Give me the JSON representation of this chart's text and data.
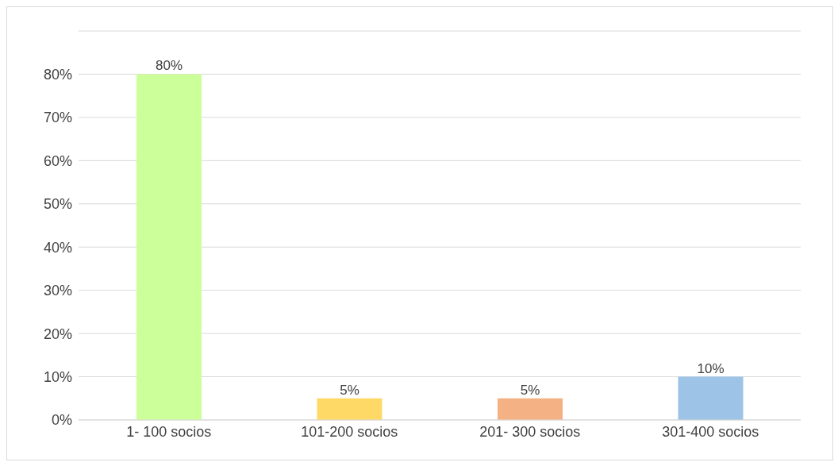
{
  "chart_data": {
    "type": "bar",
    "categories": [
      "1- 100 socios",
      "101-200 socios",
      "201- 300 socios",
      "301-400 socios"
    ],
    "values": [
      80,
      5,
      5,
      10
    ],
    "colors": [
      "#ccff99",
      "#ffd966",
      "#f4b183",
      "#9dc3e6"
    ],
    "value_labels": [
      "80%",
      "5%",
      "5%",
      "10%"
    ],
    "ylim": [
      0,
      90
    ],
    "yticks": [
      {
        "value": 0,
        "label": "0%"
      },
      {
        "value": 10,
        "label": "10%"
      },
      {
        "value": 20,
        "label": "20%"
      },
      {
        "value": 30,
        "label": "30%"
      },
      {
        "value": 40,
        "label": "40%"
      },
      {
        "value": 50,
        "label": "50%"
      },
      {
        "value": 60,
        "label": "60%"
      },
      {
        "value": 70,
        "label": "70%"
      },
      {
        "value": 80,
        "label": "80%"
      },
      {
        "value": 90,
        "label": null
      }
    ],
    "grid": "y"
  }
}
